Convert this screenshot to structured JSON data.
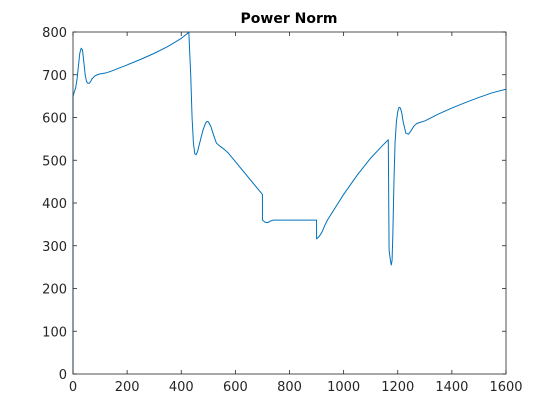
{
  "chart_data": {
    "type": "line",
    "title": "Power Norm",
    "xlabel": "",
    "ylabel": "",
    "xlim": [
      0,
      1600
    ],
    "ylim": [
      0,
      800
    ],
    "xticks": [
      0,
      200,
      400,
      600,
      800,
      1000,
      1200,
      1400,
      1600
    ],
    "yticks": [
      0,
      100,
      200,
      300,
      400,
      500,
      600,
      700,
      800
    ],
    "xtick_labels": [
      "0",
      "200",
      "400",
      "600",
      "800",
      "1000",
      "1200",
      "1400",
      "1600"
    ],
    "ytick_labels": [
      "0",
      "100",
      "200",
      "300",
      "400",
      "500",
      "600",
      "700",
      "800"
    ],
    "grid": false,
    "legend": "none",
    "colors": {
      "series": "#0072bd",
      "axes": "#262626",
      "background": "#ffffff"
    },
    "series": [
      {
        "values": [
          [
            0,
            0
          ],
          [
            0,
            650
          ],
          [
            5,
            660
          ],
          [
            10,
            670
          ],
          [
            15,
            690
          ],
          [
            20,
            720
          ],
          [
            25,
            750
          ],
          [
            30,
            762
          ],
          [
            35,
            758
          ],
          [
            40,
            730
          ],
          [
            45,
            700
          ],
          [
            50,
            684
          ],
          [
            55,
            680
          ],
          [
            60,
            680
          ],
          [
            65,
            684
          ],
          [
            70,
            690
          ],
          [
            80,
            697
          ],
          [
            90,
            700
          ],
          [
            100,
            702
          ],
          [
            120,
            704
          ],
          [
            140,
            708
          ],
          [
            160,
            713
          ],
          [
            180,
            718
          ],
          [
            200,
            723
          ],
          [
            250,
            736
          ],
          [
            300,
            750
          ],
          [
            350,
            766
          ],
          [
            400,
            785
          ],
          [
            420,
            795
          ],
          [
            428,
            800
          ],
          [
            430,
            770
          ],
          [
            435,
            700
          ],
          [
            440,
            600
          ],
          [
            445,
            540
          ],
          [
            450,
            515
          ],
          [
            455,
            513
          ],
          [
            460,
            520
          ],
          [
            470,
            545
          ],
          [
            480,
            570
          ],
          [
            490,
            587
          ],
          [
            495,
            591
          ],
          [
            500,
            590
          ],
          [
            510,
            578
          ],
          [
            520,
            558
          ],
          [
            530,
            540
          ],
          [
            545,
            532
          ],
          [
            560,
            525
          ],
          [
            575,
            516
          ],
          [
            700,
            420
          ],
          [
            700,
            360
          ],
          [
            710,
            355
          ],
          [
            720,
            354
          ],
          [
            730,
            358
          ],
          [
            740,
            360
          ],
          [
            800,
            360
          ],
          [
            860,
            360
          ],
          [
            900,
            360
          ],
          [
            900,
            316
          ],
          [
            910,
            322
          ],
          [
            920,
            332
          ],
          [
            930,
            347
          ],
          [
            940,
            360
          ],
          [
            1000,
            420
          ],
          [
            1050,
            465
          ],
          [
            1100,
            505
          ],
          [
            1140,
            532
          ],
          [
            1165,
            548
          ],
          [
            1168,
            290
          ],
          [
            1172,
            270
          ],
          [
            1176,
            255
          ],
          [
            1179,
            265
          ],
          [
            1182,
            330
          ],
          [
            1186,
            450
          ],
          [
            1190,
            540
          ],
          [
            1195,
            590
          ],
          [
            1200,
            614
          ],
          [
            1205,
            624
          ],
          [
            1210,
            622
          ],
          [
            1215,
            610
          ],
          [
            1220,
            590
          ],
          [
            1230,
            563
          ],
          [
            1240,
            561
          ],
          [
            1250,
            570
          ],
          [
            1260,
            580
          ],
          [
            1270,
            586
          ],
          [
            1280,
            588
          ],
          [
            1300,
            592
          ],
          [
            1350,
            608
          ],
          [
            1400,
            622
          ],
          [
            1450,
            635
          ],
          [
            1500,
            647
          ],
          [
            1550,
            658
          ],
          [
            1600,
            666
          ]
        ]
      }
    ]
  }
}
